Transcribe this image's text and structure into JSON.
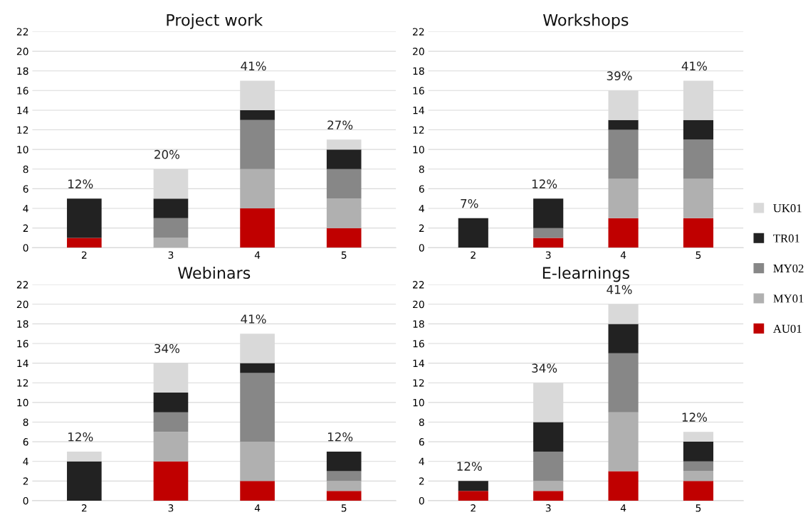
{
  "chart_data": [
    {
      "type": "bar",
      "title": "Project work",
      "stacked": true,
      "categories": [
        "2",
        "3",
        "4",
        "5"
      ],
      "ylim": [
        0,
        22
      ],
      "yticks": [
        0,
        2,
        4,
        6,
        8,
        10,
        12,
        14,
        16,
        18,
        20,
        22
      ],
      "grid": "y",
      "annotations": [
        {
          "text": "12%",
          "x": "2",
          "y": 5
        },
        {
          "text": "20%",
          "x": "3",
          "y": 8
        },
        {
          "text": "41%",
          "x": "4",
          "y": 17
        },
        {
          "text": "27%",
          "x": "5",
          "y": 11
        }
      ],
      "series": [
        {
          "color": "#c00000",
          "values": [
            1,
            0,
            4,
            2
          ]
        },
        {
          "color": "#b0b0b0",
          "values": [
            0,
            1,
            4,
            3
          ]
        },
        {
          "color": "#878787",
          "values": [
            0,
            2,
            5,
            3
          ]
        },
        {
          "color": "#222222",
          "values": [
            4,
            2,
            1,
            2
          ]
        },
        {
          "color": "#d9d9d9",
          "values": [
            0,
            3,
            3,
            1
          ]
        }
      ]
    },
    {
      "type": "bar",
      "title": "Workshops",
      "stacked": true,
      "categories": [
        "2",
        "3",
        "4",
        "5"
      ],
      "ylim": [
        0,
        22
      ],
      "yticks": [
        0,
        2,
        4,
        6,
        8,
        10,
        12,
        14,
        16,
        18,
        20,
        22
      ],
      "grid": "y",
      "legend": "right",
      "annotations": [
        {
          "text": "7%",
          "x": "2",
          "y": 3
        },
        {
          "text": "12%",
          "x": "3",
          "y": 5
        },
        {
          "text": "39%",
          "x": "4",
          "y": 16
        },
        {
          "text": "41%",
          "x": "5",
          "y": 17
        }
      ],
      "series": [
        {
          "name": "AU01",
          "color": "#c00000",
          "values": [
            0,
            1,
            3,
            3
          ]
        },
        {
          "name": "MY01",
          "color": "#b0b0b0",
          "values": [
            0,
            0,
            4,
            4
          ]
        },
        {
          "name": "MY02",
          "color": "#878787",
          "values": [
            0,
            1,
            5,
            4
          ]
        },
        {
          "name": "TR01",
          "color": "#222222",
          "values": [
            3,
            3,
            1,
            2
          ]
        },
        {
          "name": "UK01",
          "color": "#d9d9d9",
          "values": [
            0,
            0,
            3,
            4
          ]
        }
      ]
    },
    {
      "type": "bar",
      "title": "Webinars",
      "stacked": true,
      "categories": [
        "2",
        "3",
        "4",
        "5"
      ],
      "ylim": [
        0,
        22
      ],
      "yticks": [
        0,
        2,
        4,
        6,
        8,
        10,
        12,
        14,
        16,
        18,
        20,
        22
      ],
      "grid": "y",
      "annotations": [
        {
          "text": "12%",
          "x": "2",
          "y": 5
        },
        {
          "text": "34%",
          "x": "3",
          "y": 14
        },
        {
          "text": "41%",
          "x": "4",
          "y": 17
        },
        {
          "text": "12%",
          "x": "5",
          "y": 5
        }
      ],
      "series": [
        {
          "color": "#c00000",
          "values": [
            0,
            4,
            2,
            1
          ]
        },
        {
          "color": "#b0b0b0",
          "values": [
            0,
            3,
            4,
            1
          ]
        },
        {
          "color": "#878787",
          "values": [
            0,
            2,
            7,
            1
          ]
        },
        {
          "color": "#222222",
          "values": [
            4,
            2,
            1,
            2
          ]
        },
        {
          "color": "#d9d9d9",
          "values": [
            1,
            3,
            3,
            0
          ]
        }
      ]
    },
    {
      "type": "bar",
      "title": "E-learnings",
      "stacked": true,
      "categories": [
        "2",
        "3",
        "4",
        "5"
      ],
      "ylim": [
        0,
        22
      ],
      "yticks": [
        0,
        2,
        4,
        6,
        8,
        10,
        12,
        14,
        16,
        18,
        20,
        22
      ],
      "grid": "y",
      "annotations": [
        {
          "text": "12%",
          "x": "2",
          "y": 2
        },
        {
          "text": "34%",
          "x": "3",
          "y": 12
        },
        {
          "text": "41%",
          "x": "4",
          "y": 20
        },
        {
          "text": "12%",
          "x": "5",
          "y": 7
        }
      ],
      "series": [
        {
          "color": "#c00000",
          "values": [
            1,
            1,
            3,
            2
          ]
        },
        {
          "color": "#b0b0b0",
          "values": [
            0,
            1,
            6,
            1
          ]
        },
        {
          "color": "#878787",
          "values": [
            0,
            3,
            6,
            1
          ]
        },
        {
          "color": "#222222",
          "values": [
            1,
            3,
            3,
            2
          ]
        },
        {
          "color": "#d9d9d9",
          "values": [
            0,
            4,
            2,
            1
          ]
        }
      ]
    }
  ]
}
